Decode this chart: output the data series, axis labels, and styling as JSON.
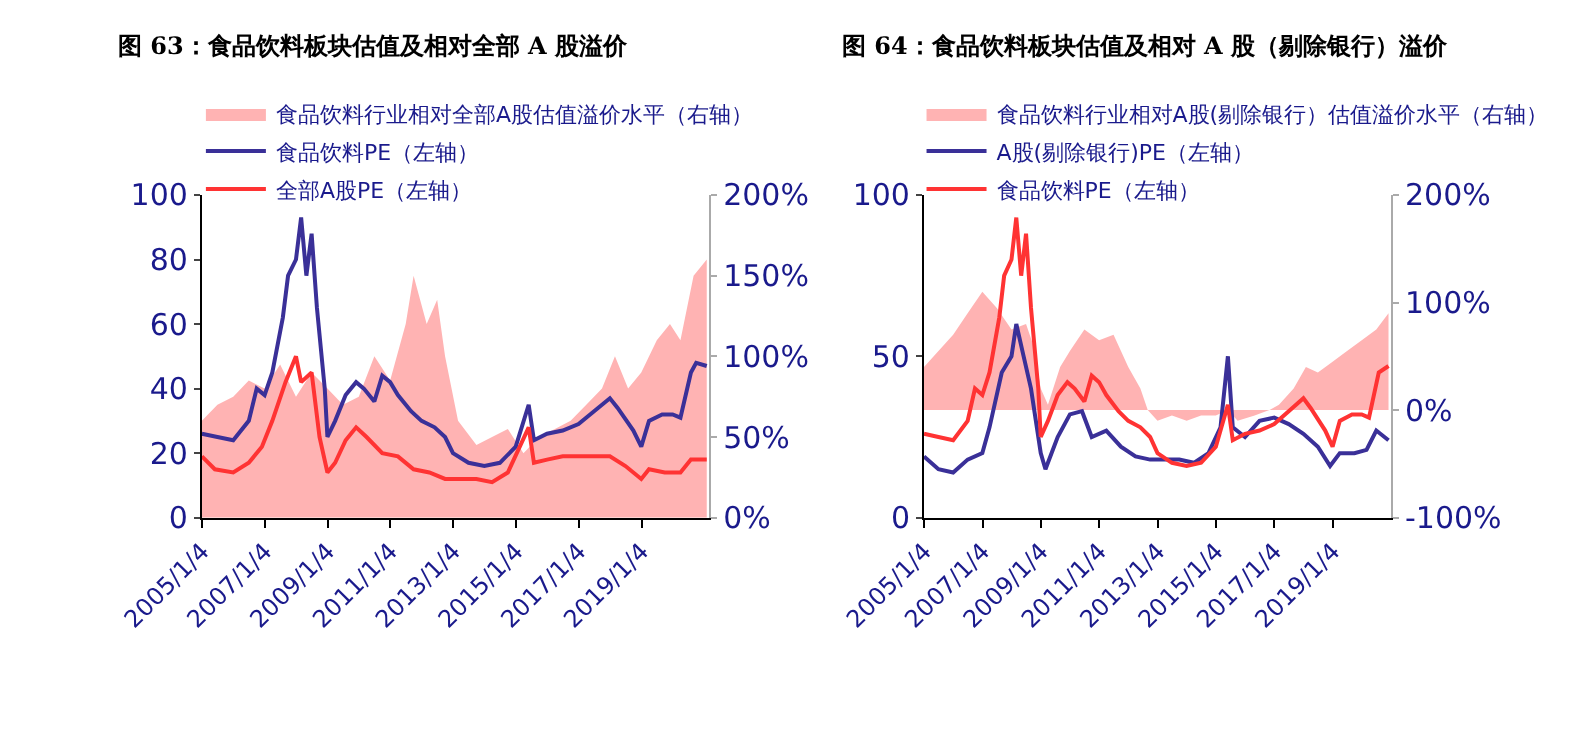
{
  "chart_data": [
    {
      "type": "line",
      "title": "图 63：食品饮料板块估值及相对全部 A 股溢价",
      "legend": "top",
      "xlim": [
        "2005-01-01",
        "2021-03-01"
      ],
      "ylim": [
        0,
        100
      ],
      "y2lim": [
        0,
        200
      ],
      "xticks": [
        {
          "value": "2005-01-04",
          "label": "2005/1/4"
        },
        {
          "value": "2007-01-04",
          "label": "2007/1/4"
        },
        {
          "value": "2009-01-04",
          "label": "2009/1/4"
        },
        {
          "value": "2011-01-04",
          "label": "2011/1/4"
        },
        {
          "value": "2013-01-04",
          "label": "2013/1/4"
        },
        {
          "value": "2015-01-04",
          "label": "2015/1/4"
        },
        {
          "value": "2017-01-04",
          "label": "2017/1/4"
        },
        {
          "value": "2019-01-04",
          "label": "2019/1/4"
        }
      ],
      "yticks": [
        0,
        20,
        40,
        60,
        80,
        100
      ],
      "y2ticks": [
        {
          "value": 0,
          "label": "0%"
        },
        {
          "value": 50,
          "label": "50%"
        },
        {
          "value": 100,
          "label": "100%"
        },
        {
          "value": 150,
          "label": "150%"
        },
        {
          "value": 200,
          "label": "200%"
        }
      ],
      "series": [
        {
          "name": "食品饮料行业相对全部A股估值溢价水平（右轴）",
          "type": "area",
          "axis": "y2",
          "color": "#ffb3b3",
          "x": [
            "2005-01",
            "2005-07",
            "2006-01",
            "2006-07",
            "2007-01",
            "2007-07",
            "2008-01",
            "2008-07",
            "2009-01",
            "2009-07",
            "2010-01",
            "2010-07",
            "2011-01",
            "2011-07",
            "2011-10",
            "2012-03",
            "2012-07",
            "2012-10",
            "2013-03",
            "2013-10",
            "2014-04",
            "2014-10",
            "2015-04",
            "2015-10",
            "2016-04",
            "2016-10",
            "2017-04",
            "2017-10",
            "2018-03",
            "2018-08",
            "2019-01",
            "2019-07",
            "2019-12",
            "2020-04",
            "2020-09",
            "2021-02"
          ],
          "values": [
            60,
            70,
            75,
            85,
            80,
            95,
            75,
            90,
            80,
            70,
            75,
            100,
            85,
            120,
            150,
            120,
            135,
            100,
            60,
            45,
            50,
            55,
            40,
            50,
            55,
            60,
            70,
            80,
            100,
            80,
            90,
            110,
            120,
            110,
            150,
            160
          ]
        },
        {
          "name": "食品饮料PE（左轴）",
          "color": "#3a3098",
          "x": [
            "2005-01",
            "2005-07",
            "2006-01",
            "2006-07",
            "2006-10",
            "2007-01",
            "2007-04",
            "2007-08",
            "2007-10",
            "2008-01",
            "2008-03",
            "2008-05",
            "2008-07",
            "2008-09",
            "2008-12",
            "2009-01",
            "2009-04",
            "2009-08",
            "2009-12",
            "2010-03",
            "2010-07",
            "2010-10",
            "2011-01",
            "2011-04",
            "2011-09",
            "2012-01",
            "2012-06",
            "2012-10",
            "2013-01",
            "2013-07",
            "2014-01",
            "2014-07",
            "2015-01",
            "2015-06",
            "2015-08",
            "2016-01",
            "2016-07",
            "2017-01",
            "2017-07",
            "2018-01",
            "2018-04",
            "2018-10",
            "2019-01",
            "2019-04",
            "2019-09",
            "2020-01",
            "2020-04",
            "2020-08",
            "2020-10",
            "2021-02"
          ],
          "values": [
            26,
            25,
            24,
            30,
            40,
            38,
            45,
            62,
            75,
            80,
            93,
            75,
            88,
            65,
            40,
            25,
            30,
            38,
            42,
            40,
            36,
            44,
            42,
            38,
            33,
            30,
            28,
            25,
            20,
            17,
            16,
            17,
            22,
            35,
            24,
            26,
            27,
            29,
            33,
            37,
            34,
            27,
            22,
            30,
            32,
            32,
            31,
            45,
            48,
            47
          ]
        },
        {
          "name": "全部A股PE（左轴）",
          "color": "#ff3333",
          "x": [
            "2005-01",
            "2005-06",
            "2006-01",
            "2006-07",
            "2006-12",
            "2007-04",
            "2007-09",
            "2008-01",
            "2008-03",
            "2008-07",
            "2008-10",
            "2009-01",
            "2009-04",
            "2009-08",
            "2009-12",
            "2010-04",
            "2010-10",
            "2011-04",
            "2011-10",
            "2012-04",
            "2012-10",
            "2013-04",
            "2013-10",
            "2014-04",
            "2014-10",
            "2015-06",
            "2015-08",
            "2016-01",
            "2016-07",
            "2017-01",
            "2017-07",
            "2018-01",
            "2018-07",
            "2019-01",
            "2019-04",
            "2019-10",
            "2020-04",
            "2020-08",
            "2021-02"
          ],
          "values": [
            19,
            15,
            14,
            17,
            22,
            30,
            42,
            50,
            42,
            45,
            25,
            14,
            17,
            24,
            28,
            25,
            20,
            19,
            15,
            14,
            12,
            12,
            12,
            11,
            14,
            28,
            17,
            18,
            19,
            19,
            19,
            19,
            16,
            12,
            15,
            14,
            14,
            18,
            18
          ]
        }
      ]
    },
    {
      "type": "line",
      "title": "图 64：食品饮料板块估值及相对 A 股（剔除银行）溢价",
      "legend": "top",
      "xlim": [
        "2005-01-01",
        "2021-01-01"
      ],
      "ylim": [
        0,
        100
      ],
      "y2lim": [
        -100,
        200
      ],
      "xticks": [
        {
          "value": "2005-01-04",
          "label": "2005/1/4"
        },
        {
          "value": "2007-01-04",
          "label": "2007/1/4"
        },
        {
          "value": "2009-01-04",
          "label": "2009/1/4"
        },
        {
          "value": "2011-01-04",
          "label": "2011/1/4"
        },
        {
          "value": "2013-01-04",
          "label": "2013/1/4"
        },
        {
          "value": "2015-01-04",
          "label": "2015/1/4"
        },
        {
          "value": "2017-01-04",
          "label": "2017/1/4"
        },
        {
          "value": "2019-01-04",
          "label": "2019/1/4"
        }
      ],
      "yticks": [
        0,
        50,
        100
      ],
      "y2ticks": [
        {
          "value": -100,
          "label": "-100%"
        },
        {
          "value": 0,
          "label": "0%"
        },
        {
          "value": 100,
          "label": "100%"
        },
        {
          "value": 200,
          "label": "200%"
        }
      ],
      "series": [
        {
          "name": "食品饮料行业相对A股(剔除银行）估值溢价水平（右轴）",
          "type": "area",
          "axis": "y2",
          "color": "#ffb3b3",
          "x": [
            "2005-01",
            "2005-07",
            "2006-01",
            "2006-07",
            "2007-01",
            "2007-07",
            "2008-01",
            "2008-07",
            "2008-10",
            "2009-01",
            "2009-04",
            "2009-09",
            "2010-01",
            "2010-07",
            "2011-01",
            "2011-07",
            "2012-01",
            "2012-06",
            "2012-09",
            "2013-01",
            "2013-07",
            "2014-01",
            "2014-07",
            "2015-01",
            "2015-06",
            "2015-10",
            "2016-05",
            "2016-11",
            "2017-03",
            "2017-09",
            "2018-02",
            "2018-07",
            "2019-01",
            "2019-07",
            "2020-01",
            "2020-07",
            "2020-12"
          ],
          "values": [
            40,
            55,
            70,
            90,
            110,
            95,
            75,
            80,
            60,
            20,
            5,
            40,
            55,
            75,
            65,
            70,
            40,
            20,
            0,
            -10,
            -5,
            -10,
            -5,
            -5,
            0,
            -10,
            -5,
            0,
            5,
            20,
            40,
            35,
            45,
            55,
            65,
            75,
            90
          ]
        },
        {
          "name": "A股(剔除银行)PE（左轴）",
          "color": "#3a3098",
          "x": [
            "2005-01",
            "2005-07",
            "2006-01",
            "2006-07",
            "2007-01",
            "2007-04",
            "2007-09",
            "2008-01",
            "2008-03",
            "2008-06",
            "2008-09",
            "2009-01",
            "2009-03",
            "2009-08",
            "2010-01",
            "2010-06",
            "2010-10",
            "2011-04",
            "2011-10",
            "2012-04",
            "2012-10",
            "2013-04",
            "2013-10",
            "2014-04",
            "2014-10",
            "2015-03",
            "2015-06",
            "2015-08",
            "2016-01",
            "2016-07",
            "2017-01",
            "2017-07",
            "2018-01",
            "2018-07",
            "2018-12",
            "2019-04",
            "2019-10",
            "2020-03",
            "2020-07",
            "2020-12"
          ],
          "values": [
            19,
            15,
            14,
            18,
            20,
            28,
            45,
            50,
            60,
            50,
            40,
            20,
            15,
            25,
            32,
            33,
            25,
            27,
            22,
            19,
            18,
            18,
            18,
            17,
            20,
            28,
            50,
            28,
            25,
            30,
            31,
            29,
            26,
            22,
            16,
            20,
            20,
            21,
            27,
            24
          ]
        },
        {
          "name": "食品饮料PE（左轴）",
          "color": "#ff3333",
          "x": [
            "2005-01",
            "2005-07",
            "2006-01",
            "2006-07",
            "2006-10",
            "2007-01",
            "2007-04",
            "2007-08",
            "2007-10",
            "2008-01",
            "2008-03",
            "2008-05",
            "2008-07",
            "2008-09",
            "2008-12",
            "2009-01",
            "2009-04",
            "2009-08",
            "2009-12",
            "2010-03",
            "2010-07",
            "2010-10",
            "2011-01",
            "2011-04",
            "2011-09",
            "2012-01",
            "2012-06",
            "2012-10",
            "2013-01",
            "2013-07",
            "2014-01",
            "2014-07",
            "2015-01",
            "2015-06",
            "2015-08",
            "2016-01",
            "2016-07",
            "2017-01",
            "2017-07",
            "2018-01",
            "2018-04",
            "2018-10",
            "2019-01",
            "2019-04",
            "2019-09",
            "2020-01",
            "2020-04",
            "2020-08",
            "2020-12"
          ],
          "values": [
            26,
            25,
            24,
            30,
            40,
            38,
            45,
            62,
            75,
            80,
            93,
            75,
            88,
            65,
            40,
            25,
            30,
            38,
            42,
            40,
            36,
            44,
            42,
            38,
            33,
            30,
            28,
            25,
            20,
            17,
            16,
            17,
            22,
            35,
            24,
            26,
            27,
            29,
            33,
            37,
            34,
            27,
            22,
            30,
            32,
            32,
            31,
            45,
            47
          ]
        }
      ]
    }
  ]
}
